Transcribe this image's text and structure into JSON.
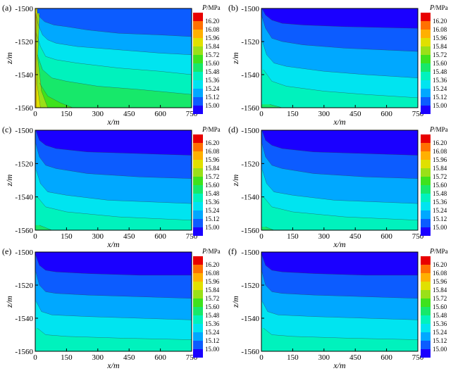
{
  "chart_data": [
    {
      "type": "heatmap",
      "panel_label": "(a)",
      "xlabel": "x/m",
      "ylabel": "z/m",
      "xlim": [
        0,
        750
      ],
      "ylim": [
        -1560,
        -1500
      ],
      "x_ticks": [
        "0",
        "150",
        "300",
        "450",
        "600",
        "750"
      ],
      "y_ticks": [
        "-1500",
        "-1520",
        "-1540",
        "-1560"
      ],
      "colorbar": {
        "title_var": "P",
        "title_unit": "/MPa",
        "levels": [
          "16.20",
          "16.08",
          "15.96",
          "15.84",
          "15.72",
          "15.60",
          "15.48",
          "15.36",
          "15.24",
          "15.12",
          "15.00"
        ]
      },
      "contours": [
        {
          "level": 15.12,
          "points": [
            [
              5,
              -1500
            ],
            [
              230,
              -1500
            ]
          ]
        },
        {
          "level": 15.24,
          "points": [
            [
              3,
              -1500
            ],
            [
              20,
              -1505
            ],
            [
              45,
              -1508
            ],
            [
              90,
              -1510
            ],
            [
              150,
              -1511
            ],
            [
              250,
              -1513
            ],
            [
              400,
              -1515
            ],
            [
              600,
              -1516
            ],
            [
              750,
              -1517
            ]
          ]
        },
        {
          "level": 15.36,
          "points": [
            [
              3,
              -1504
            ],
            [
              15,
              -1510
            ],
            [
              35,
              -1516
            ],
            [
              60,
              -1519
            ],
            [
              100,
              -1521
            ],
            [
              200,
              -1523
            ],
            [
              400,
              -1525
            ],
            [
              600,
              -1527
            ],
            [
              750,
              -1528
            ]
          ]
        },
        {
          "level": 15.48,
          "points": [
            [
              5,
              -1515
            ],
            [
              25,
              -1523
            ],
            [
              50,
              -1529
            ],
            [
              100,
              -1531
            ],
            [
              200,
              -1533
            ],
            [
              400,
              -1536
            ],
            [
              600,
              -1538
            ],
            [
              750,
              -1540
            ]
          ]
        },
        {
          "level": 15.6,
          "points": [
            [
              10,
              -1528
            ],
            [
              35,
              -1537
            ],
            [
              80,
              -1542
            ],
            [
              150,
              -1544
            ],
            [
              300,
              -1547
            ],
            [
              500,
              -1549
            ],
            [
              750,
              -1552
            ]
          ]
        },
        {
          "level": 15.72,
          "points": [
            [
              20,
              -1545
            ],
            [
              60,
              -1553
            ],
            [
              120,
              -1557
            ],
            [
              180,
              -1560
            ]
          ]
        },
        {
          "level": 15.84,
          "points": [
            [
              20,
              -1503
            ],
            [
              12,
              -1530
            ],
            [
              30,
              -1550
            ],
            [
              60,
              -1560
            ]
          ]
        },
        {
          "level": 15.96,
          "points": [
            [
              10,
              -1500
            ],
            [
              5,
              -1520
            ],
            [
              8,
              -1545
            ],
            [
              25,
              -1560
            ]
          ]
        },
        {
          "level": 16.08,
          "points": [
            [
              4,
              -1503
            ],
            [
              3,
              -1540
            ],
            [
              5,
              -1560
            ]
          ]
        }
      ]
    },
    {
      "type": "heatmap",
      "panel_label": "(b)",
      "xlabel": "x/m",
      "ylabel": "z/m",
      "xlim": [
        0,
        750
      ],
      "ylim": [
        -1560,
        -1500
      ],
      "x_ticks": [
        "0",
        "150",
        "300",
        "450",
        "600",
        "750"
      ],
      "y_ticks": [
        "-1500",
        "-1520",
        "-1540",
        "-1560"
      ],
      "colorbar": {
        "title_var": "P",
        "title_unit": "/MPa",
        "levels": [
          "16.20",
          "16.08",
          "15.96",
          "15.84",
          "15.72",
          "15.60",
          "15.48",
          "15.36",
          "15.24",
          "15.12",
          "15.00"
        ]
      },
      "contours": [
        {
          "level": 15.12,
          "points": [
            [
              3,
              -1500
            ],
            [
              20,
              -1504
            ],
            [
              50,
              -1507
            ],
            [
              100,
              -1509
            ],
            [
              200,
              -1510
            ],
            [
              400,
              -1511
            ],
            [
              750,
              -1512
            ]
          ]
        },
        {
          "level": 15.24,
          "points": [
            [
              3,
              -1505
            ],
            [
              20,
              -1512
            ],
            [
              50,
              -1518
            ],
            [
              100,
              -1520
            ],
            [
              200,
              -1522
            ],
            [
              400,
              -1524
            ],
            [
              750,
              -1526
            ]
          ]
        },
        {
          "level": 15.36,
          "points": [
            [
              5,
              -1520
            ],
            [
              25,
              -1528
            ],
            [
              60,
              -1533
            ],
            [
              120,
              -1535
            ],
            [
              300,
              -1538
            ],
            [
              500,
              -1540
            ],
            [
              750,
              -1542
            ]
          ]
        },
        {
          "level": 15.48,
          "points": [
            [
              10,
              -1537
            ],
            [
              50,
              -1544
            ],
            [
              120,
              -1547
            ],
            [
              300,
              -1550
            ],
            [
              500,
              -1552
            ],
            [
              750,
              -1554
            ]
          ]
        },
        {
          "level": 15.6,
          "points": [
            [
              40,
              -1558
            ],
            [
              100,
              -1560
            ]
          ]
        }
      ]
    },
    {
      "type": "heatmap",
      "panel_label": "(c)",
      "xlabel": "x/m",
      "ylabel": "z/m",
      "xlim": [
        0,
        750
      ],
      "ylim": [
        -1560,
        -1500
      ],
      "x_ticks": [
        "0",
        "150",
        "300",
        "450",
        "600",
        "750"
      ],
      "y_ticks": [
        "-1500",
        "-1520",
        "-1540",
        "-1560"
      ],
      "colorbar": {
        "title_var": "P",
        "title_unit": "/MPa",
        "levels": [
          "16.20",
          "16.08",
          "15.96",
          "15.84",
          "15.72",
          "15.60",
          "15.48",
          "15.36",
          "15.24",
          "15.12",
          "15.00"
        ]
      },
      "contours": [
        {
          "level": 15.12,
          "points": [
            [
              3,
              -1500
            ],
            [
              20,
              -1506
            ],
            [
              50,
              -1509
            ],
            [
              100,
              -1511
            ],
            [
              250,
              -1513
            ],
            [
              500,
              -1514
            ],
            [
              750,
              -1515
            ]
          ]
        },
        {
          "level": 15.24,
          "points": [
            [
              3,
              -1508
            ],
            [
              20,
              -1516
            ],
            [
              50,
              -1521
            ],
            [
              100,
              -1523
            ],
            [
              250,
              -1526
            ],
            [
              500,
              -1528
            ],
            [
              750,
              -1529
            ]
          ]
        },
        {
          "level": 15.36,
          "points": [
            [
              5,
              -1524
            ],
            [
              25,
              -1532
            ],
            [
              60,
              -1537
            ],
            [
              150,
              -1539
            ],
            [
              350,
              -1542
            ],
            [
              750,
              -1544
            ]
          ]
        },
        {
          "level": 15.48,
          "points": [
            [
              10,
              -1540
            ],
            [
              50,
              -1546
            ],
            [
              150,
              -1549
            ],
            [
              400,
              -1552
            ],
            [
              750,
              -1554
            ]
          ]
        },
        {
          "level": 15.6,
          "points": [
            [
              20,
              -1557
            ],
            [
              80,
              -1560
            ]
          ]
        }
      ]
    },
    {
      "type": "heatmap",
      "panel_label": "(d)",
      "xlabel": "x/m",
      "ylabel": "z/m",
      "xlim": [
        0,
        750
      ],
      "ylim": [
        -1560,
        -1500
      ],
      "x_ticks": [
        "0",
        "150",
        "300",
        "450",
        "600",
        "750"
      ],
      "y_ticks": [
        "-1500",
        "-1520",
        "-1540",
        "-1560"
      ],
      "colorbar": {
        "title_var": "P",
        "title_unit": "/MPa",
        "levels": [
          "16.20",
          "16.08",
          "15.96",
          "15.84",
          "15.72",
          "15.60",
          "15.48",
          "15.36",
          "15.24",
          "15.12",
          "15.00"
        ]
      },
      "contours": [
        {
          "level": 15.12,
          "points": [
            [
              3,
              -1500
            ],
            [
              20,
              -1506
            ],
            [
              50,
              -1509
            ],
            [
              100,
              -1511
            ],
            [
              250,
              -1513
            ],
            [
              500,
              -1514
            ],
            [
              750,
              -1515
            ]
          ]
        },
        {
          "level": 15.24,
          "points": [
            [
              3,
              -1508
            ],
            [
              20,
              -1516
            ],
            [
              50,
              -1521
            ],
            [
              100,
              -1523
            ],
            [
              250,
              -1526
            ],
            [
              500,
              -1528
            ],
            [
              750,
              -1529
            ]
          ]
        },
        {
          "level": 15.36,
          "points": [
            [
              5,
              -1524
            ],
            [
              25,
              -1532
            ],
            [
              60,
              -1537
            ],
            [
              150,
              -1539
            ],
            [
              350,
              -1542
            ],
            [
              750,
              -1544
            ]
          ]
        },
        {
          "level": 15.48,
          "points": [
            [
              10,
              -1540
            ],
            [
              50,
              -1546
            ],
            [
              150,
              -1549
            ],
            [
              400,
              -1552
            ],
            [
              750,
              -1554
            ]
          ]
        },
        {
          "level": 15.6,
          "points": [
            [
              20,
              -1558
            ],
            [
              60,
              -1560
            ]
          ]
        }
      ]
    },
    {
      "type": "heatmap",
      "panel_label": "(e)",
      "xlabel": "x/m",
      "ylabel": "z/m",
      "xlim": [
        0,
        750
      ],
      "ylim": [
        -1560,
        -1500
      ],
      "x_ticks": [
        "0",
        "150",
        "300",
        "450",
        "600",
        "750"
      ],
      "y_ticks": [
        "-1500",
        "-1520",
        "-1540",
        "-1560"
      ],
      "colorbar": {
        "title_var": "P",
        "title_unit": "/MPa",
        "levels": [
          "16.20",
          "16.08",
          "15.96",
          "15.84",
          "15.72",
          "15.60",
          "15.48",
          "15.36",
          "15.24",
          "15.12",
          "15.00"
        ]
      },
      "contours": [
        {
          "level": 15.12,
          "points": [
            [
              3,
              -1502
            ],
            [
              20,
              -1508
            ],
            [
              50,
              -1511
            ],
            [
              100,
              -1512
            ],
            [
              250,
              -1513
            ],
            [
              500,
              -1514
            ],
            [
              750,
              -1514
            ]
          ]
        },
        {
          "level": 15.24,
          "points": [
            [
              3,
              -1512
            ],
            [
              20,
              -1520
            ],
            [
              50,
              -1524
            ],
            [
              100,
              -1525
            ],
            [
              250,
              -1526
            ],
            [
              500,
              -1527
            ],
            [
              750,
              -1528
            ]
          ]
        },
        {
          "level": 15.36,
          "points": [
            [
              5,
              -1530
            ],
            [
              30,
              -1536
            ],
            [
              80,
              -1538
            ],
            [
              250,
              -1539
            ],
            [
              500,
              -1540
            ],
            [
              750,
              -1541
            ]
          ]
        },
        {
          "level": 15.48,
          "points": [
            [
              10,
              -1546
            ],
            [
              50,
              -1550
            ],
            [
              150,
              -1551
            ],
            [
              400,
              -1552
            ],
            [
              750,
              -1553
            ]
          ]
        }
      ]
    },
    {
      "type": "heatmap",
      "panel_label": "(f)",
      "xlabel": "x/m",
      "ylabel": "z/m",
      "xlim": [
        0,
        750
      ],
      "ylim": [
        -1560,
        -1500
      ],
      "x_ticks": [
        "0",
        "150",
        "300",
        "450",
        "600",
        "750"
      ],
      "y_ticks": [
        "-1500",
        "-1520",
        "-1540",
        "-1560"
      ],
      "colorbar": {
        "title_var": "P",
        "title_unit": "/MPa",
        "levels": [
          "16.20",
          "16.08",
          "15.96",
          "15.84",
          "15.72",
          "15.60",
          "15.48",
          "15.36",
          "15.24",
          "15.12",
          "15.00"
        ]
      },
      "contours": [
        {
          "level": 15.12,
          "points": [
            [
              3,
              -1502
            ],
            [
              20,
              -1508
            ],
            [
              50,
              -1511
            ],
            [
              100,
              -1512
            ],
            [
              250,
              -1513
            ],
            [
              500,
              -1514
            ],
            [
              750,
              -1514
            ]
          ]
        },
        {
          "level": 15.24,
          "points": [
            [
              3,
              -1512
            ],
            [
              20,
              -1520
            ],
            [
              50,
              -1524
            ],
            [
              100,
              -1525
            ],
            [
              250,
              -1526
            ],
            [
              500,
              -1527
            ],
            [
              750,
              -1528
            ]
          ]
        },
        {
          "level": 15.36,
          "points": [
            [
              5,
              -1530
            ],
            [
              30,
              -1536
            ],
            [
              80,
              -1538
            ],
            [
              250,
              -1539
            ],
            [
              500,
              -1540
            ],
            [
              750,
              -1541
            ]
          ]
        },
        {
          "level": 15.48,
          "points": [
            [
              10,
              -1546
            ],
            [
              50,
              -1550
            ],
            [
              150,
              -1551
            ],
            [
              400,
              -1552
            ],
            [
              750,
              -1553
            ]
          ]
        }
      ]
    }
  ],
  "colors": {
    "bands": [
      "#1a00ff",
      "#0c5cff",
      "#00a8ff",
      "#00e4f0",
      "#00f2bd",
      "#17e86a",
      "#3ee21d",
      "#9ae018",
      "#e0e000",
      "#ffb000",
      "#ff7000",
      "#e80000"
    ]
  }
}
